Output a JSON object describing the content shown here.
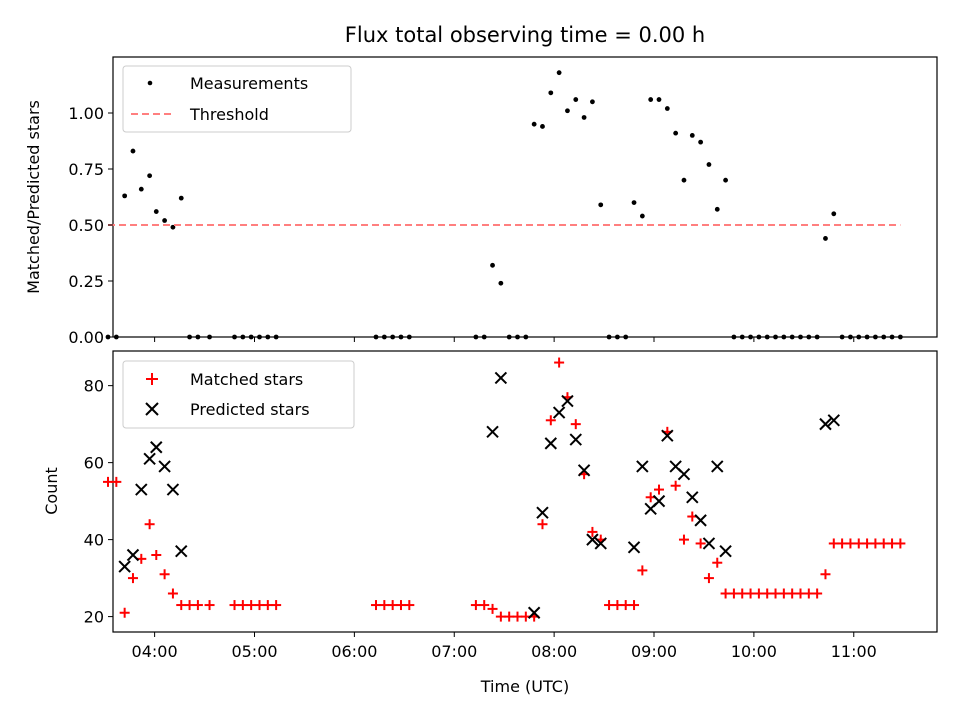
{
  "figure": {
    "title": "Flux total observing time = 0.00 h",
    "xlabel": "Time (UTC)",
    "x_ticks": [
      "04:00",
      "05:00",
      "06:00",
      "07:00",
      "08:00",
      "09:00",
      "10:00",
      "11:00"
    ]
  },
  "chart_data": [
    {
      "type": "scatter",
      "ylabel": "Matched/Predicted stars",
      "xlim": [
        "03:35",
        "11:50"
      ],
      "ylim": [
        0,
        1.25
      ],
      "y_ticks": [
        "0.00",
        "0.25",
        "0.50",
        "0.75",
        "1.00"
      ],
      "y_tick_values": [
        0,
        0.25,
        0.5,
        0.75,
        1.0
      ],
      "legend": {
        "placement": "upper-left",
        "entries": [
          "Measurements",
          "Threshold"
        ]
      },
      "series": [
        {
          "name": "Measurements",
          "marker": "dot",
          "color": "#000000",
          "points": [
            [
              "03:32",
              0
            ],
            [
              "03:37",
              0
            ],
            [
              "03:42",
              0.63
            ],
            [
              "03:47",
              0.83
            ],
            [
              "03:52",
              0.66
            ],
            [
              "03:57",
              0.72
            ],
            [
              "04:01",
              0.56
            ],
            [
              "04:06",
              0.52
            ],
            [
              "04:11",
              0.49
            ],
            [
              "04:16",
              0.62
            ],
            [
              "04:21",
              0
            ],
            [
              "04:26",
              0
            ],
            [
              "04:33",
              0
            ],
            [
              "04:48",
              0
            ],
            [
              "04:53",
              0
            ],
            [
              "04:58",
              0
            ],
            [
              "05:03",
              0
            ],
            [
              "05:08",
              0
            ],
            [
              "05:13",
              0
            ],
            [
              "06:13",
              0
            ],
            [
              "06:18",
              0
            ],
            [
              "06:23",
              0
            ],
            [
              "06:28",
              0
            ],
            [
              "06:33",
              0
            ],
            [
              "07:13",
              0
            ],
            [
              "07:18",
              0
            ],
            [
              "07:23",
              0.32
            ],
            [
              "07:28",
              0.24
            ],
            [
              "07:33",
              0
            ],
            [
              "07:38",
              0
            ],
            [
              "07:43",
              0
            ],
            [
              "07:48",
              0.95
            ],
            [
              "07:53",
              0.94
            ],
            [
              "07:58",
              1.09
            ],
            [
              "08:03",
              1.18
            ],
            [
              "08:08",
              1.01
            ],
            [
              "08:13",
              1.06
            ],
            [
              "08:18",
              0.98
            ],
            [
              "08:23",
              1.05
            ],
            [
              "08:28",
              0.59
            ],
            [
              "08:33",
              0
            ],
            [
              "08:38",
              0
            ],
            [
              "08:43",
              0
            ],
            [
              "08:48",
              0.6
            ],
            [
              "08:53",
              0.54
            ],
            [
              "08:58",
              1.06
            ],
            [
              "09:03",
              1.06
            ],
            [
              "09:08",
              1.02
            ],
            [
              "09:13",
              0.91
            ],
            [
              "09:18",
              0.7
            ],
            [
              "09:23",
              0.9
            ],
            [
              "09:28",
              0.87
            ],
            [
              "09:33",
              0.77
            ],
            [
              "09:38",
              0.57
            ],
            [
              "09:43",
              0.7
            ],
            [
              "09:48",
              0
            ],
            [
              "09:53",
              0
            ],
            [
              "09:58",
              0
            ],
            [
              "10:03",
              0
            ],
            [
              "10:08",
              0
            ],
            [
              "10:13",
              0
            ],
            [
              "10:18",
              0
            ],
            [
              "10:23",
              0
            ],
            [
              "10:28",
              0
            ],
            [
              "10:33",
              0
            ],
            [
              "10:38",
              0
            ],
            [
              "10:43",
              0.44
            ],
            [
              "10:48",
              0.55
            ],
            [
              "10:53",
              0
            ],
            [
              "10:58",
              0
            ],
            [
              "11:03",
              0
            ],
            [
              "11:08",
              0
            ],
            [
              "11:13",
              0
            ],
            [
              "11:18",
              0
            ],
            [
              "11:23",
              0
            ],
            [
              "11:28",
              0
            ]
          ]
        },
        {
          "name": "Threshold",
          "marker": "dashed-line",
          "color": "#ff7f7f",
          "points": [
            [
              "03:32",
              0.5
            ],
            [
              "11:28",
              0.5
            ]
          ]
        }
      ]
    },
    {
      "type": "scatter",
      "ylabel": "Count",
      "xlim": [
        "03:35",
        "11:50"
      ],
      "ylim": [
        16,
        89
      ],
      "y_ticks": [
        "20",
        "40",
        "60",
        "80"
      ],
      "y_tick_values": [
        20,
        40,
        60,
        80
      ],
      "legend": {
        "placement": "upper-left",
        "entries": [
          "Matched stars",
          "Predicted stars"
        ]
      },
      "series": [
        {
          "name": "Matched stars",
          "marker": "plus",
          "color": "#ff0000",
          "points": [
            [
              "03:32",
              55
            ],
            [
              "03:37",
              55
            ],
            [
              "03:42",
              21
            ],
            [
              "03:47",
              30
            ],
            [
              "03:52",
              35
            ],
            [
              "03:57",
              44
            ],
            [
              "04:01",
              36
            ],
            [
              "04:06",
              31
            ],
            [
              "04:11",
              26
            ],
            [
              "04:16",
              23
            ],
            [
              "04:21",
              23
            ],
            [
              "04:26",
              23
            ],
            [
              "04:33",
              23
            ],
            [
              "04:48",
              23
            ],
            [
              "04:53",
              23
            ],
            [
              "04:58",
              23
            ],
            [
              "05:03",
              23
            ],
            [
              "05:08",
              23
            ],
            [
              "05:13",
              23
            ],
            [
              "06:13",
              23
            ],
            [
              "06:18",
              23
            ],
            [
              "06:23",
              23
            ],
            [
              "06:28",
              23
            ],
            [
              "06:33",
              23
            ],
            [
              "07:13",
              23
            ],
            [
              "07:18",
              23
            ],
            [
              "07:23",
              22
            ],
            [
              "07:28",
              20
            ],
            [
              "07:33",
              20
            ],
            [
              "07:38",
              20
            ],
            [
              "07:43",
              20
            ],
            [
              "07:48",
              20
            ],
            [
              "07:53",
              44
            ],
            [
              "07:58",
              71
            ],
            [
              "08:03",
              86
            ],
            [
              "08:08",
              77
            ],
            [
              "08:13",
              70
            ],
            [
              "08:18",
              57
            ],
            [
              "08:23",
              42
            ],
            [
              "08:28",
              40
            ],
            [
              "08:33",
              23
            ],
            [
              "08:38",
              23
            ],
            [
              "08:43",
              23
            ],
            [
              "08:48",
              23
            ],
            [
              "08:53",
              32
            ],
            [
              "08:58",
              51
            ],
            [
              "09:03",
              53
            ],
            [
              "09:08",
              68
            ],
            [
              "09:13",
              54
            ],
            [
              "09:18",
              40
            ],
            [
              "09:23",
              46
            ],
            [
              "09:28",
              39
            ],
            [
              "09:33",
              30
            ],
            [
              "09:38",
              34
            ],
            [
              "09:43",
              26
            ],
            [
              "09:48",
              26
            ],
            [
              "09:53",
              26
            ],
            [
              "09:58",
              26
            ],
            [
              "10:03",
              26
            ],
            [
              "10:08",
              26
            ],
            [
              "10:13",
              26
            ],
            [
              "10:18",
              26
            ],
            [
              "10:23",
              26
            ],
            [
              "10:28",
              26
            ],
            [
              "10:33",
              26
            ],
            [
              "10:38",
              26
            ],
            [
              "10:43",
              31
            ],
            [
              "10:48",
              39
            ],
            [
              "10:53",
              39
            ],
            [
              "10:58",
              39
            ],
            [
              "11:03",
              39
            ],
            [
              "11:08",
              39
            ],
            [
              "11:13",
              39
            ],
            [
              "11:18",
              39
            ],
            [
              "11:23",
              39
            ],
            [
              "11:28",
              39
            ]
          ]
        },
        {
          "name": "Predicted stars",
          "marker": "x",
          "color": "#000000",
          "points": [
            [
              "03:42",
              33
            ],
            [
              "03:47",
              36
            ],
            [
              "03:52",
              53
            ],
            [
              "03:57",
              61
            ],
            [
              "04:01",
              64
            ],
            [
              "04:06",
              59
            ],
            [
              "04:11",
              53
            ],
            [
              "04:16",
              37
            ],
            [
              "07:23",
              68
            ],
            [
              "07:28",
              82
            ],
            [
              "07:48",
              21
            ],
            [
              "07:53",
              47
            ],
            [
              "07:58",
              65
            ],
            [
              "08:03",
              73
            ],
            [
              "08:08",
              76
            ],
            [
              "08:13",
              66
            ],
            [
              "08:18",
              58
            ],
            [
              "08:23",
              40
            ],
            [
              "08:28",
              39
            ],
            [
              "08:48",
              38
            ],
            [
              "08:53",
              59
            ],
            [
              "08:58",
              48
            ],
            [
              "09:03",
              50
            ],
            [
              "09:08",
              67
            ],
            [
              "09:13",
              59
            ],
            [
              "09:18",
              57
            ],
            [
              "09:23",
              51
            ],
            [
              "09:28",
              45
            ],
            [
              "09:33",
              39
            ],
            [
              "09:38",
              59
            ],
            [
              "09:43",
              37
            ],
            [
              "10:43",
              70
            ],
            [
              "10:48",
              71
            ]
          ]
        }
      ]
    }
  ]
}
